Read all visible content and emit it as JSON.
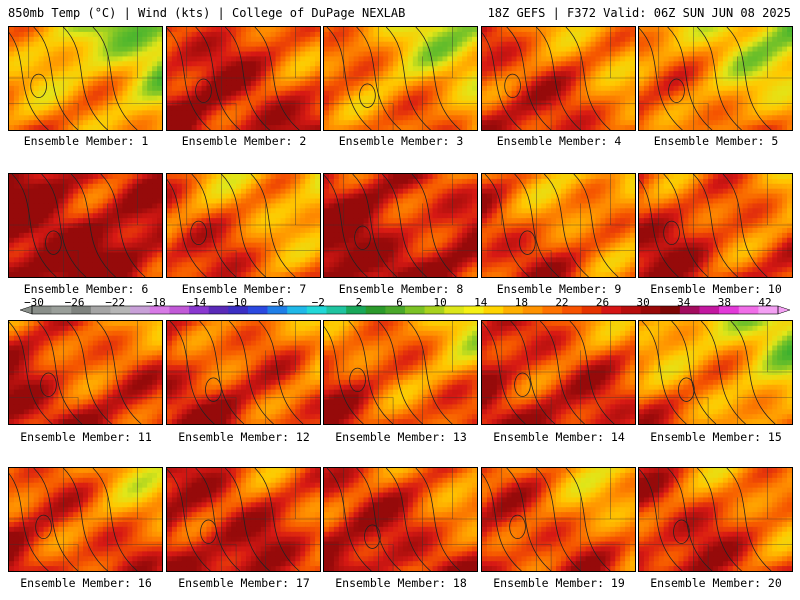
{
  "header": {
    "left": "850mb Temp (°C) | Wind (kts) | College of DuPage NEXLAB",
    "right": "18Z GEFS | F372 Valid: 06Z SUN JUN 08 2025"
  },
  "colorbar": {
    "labels": [
      "-30",
      "-26",
      "-22",
      "-18",
      "-14",
      "-10",
      "-6",
      "-2",
      "2",
      "6",
      "10",
      "14",
      "18",
      "22",
      "26",
      "30",
      "34",
      "38",
      "42"
    ],
    "colors": [
      "#8a8f8a",
      "#9a9f9a",
      "#7f837f",
      "#a5a5a5",
      "#b6b6b6",
      "#c8a0d8",
      "#d77ae6",
      "#c15ad7",
      "#8a38d0",
      "#5a2ab8",
      "#3b2fc4",
      "#2b49e0",
      "#1f7fe8",
      "#20b8e8",
      "#22d8d8",
      "#1fc4a0",
      "#19a85a",
      "#2b9a2b",
      "#4aa82a",
      "#7bc225",
      "#a8d21d",
      "#dce61a",
      "#f5f014",
      "#ffd400",
      "#ffb000",
      "#ff9200",
      "#ff7200",
      "#f85200",
      "#e63300",
      "#d51515",
      "#b80d0d",
      "#9a0808",
      "#7e0505",
      "#a20c5e",
      "#c218a0",
      "#e23ad8",
      "#f06ee8",
      "#f3a0f3"
    ]
  },
  "members": [
    {
      "caption": "Ensemble Member: 1",
      "warmth": 0.55
    },
    {
      "caption": "Ensemble Member: 2",
      "warmth": 0.85
    },
    {
      "caption": "Ensemble Member: 3",
      "warmth": 0.62
    },
    {
      "caption": "Ensemble Member: 4",
      "warmth": 0.75
    },
    {
      "caption": "Ensemble Member: 5",
      "warmth": 0.6
    },
    {
      "caption": "Ensemble Member: 6",
      "warmth": 0.95
    },
    {
      "caption": "Ensemble Member: 7",
      "warmth": 0.7
    },
    {
      "caption": "Ensemble Member: 8",
      "warmth": 0.9
    },
    {
      "caption": "Ensemble Member: 9",
      "warmth": 0.72
    },
    {
      "caption": "Ensemble Member: 10",
      "warmth": 0.78
    },
    {
      "caption": "Ensemble Member: 11",
      "warmth": 0.8
    },
    {
      "caption": "Ensemble Member: 12",
      "warmth": 0.78
    },
    {
      "caption": "Ensemble Member: 13",
      "warmth": 0.72
    },
    {
      "caption": "Ensemble Member: 14",
      "warmth": 0.82
    },
    {
      "caption": "Ensemble Member: 15",
      "warmth": 0.6
    },
    {
      "caption": "Ensemble Member: 16",
      "warmth": 0.75
    },
    {
      "caption": "Ensemble Member: 17",
      "warmth": 0.85
    },
    {
      "caption": "Ensemble Member: 18",
      "warmth": 0.82
    },
    {
      "caption": "Ensemble Member: 19",
      "warmth": 0.74
    },
    {
      "caption": "Ensemble Member: 20",
      "warmth": 0.78
    }
  ]
}
